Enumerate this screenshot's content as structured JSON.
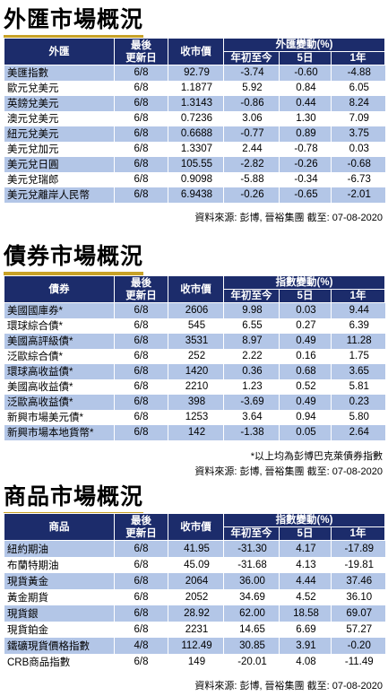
{
  "fx": {
    "title": "外匯市場概況",
    "headers": {
      "name": "外匯",
      "date_line1": "最後",
      "date_line2": "更新日",
      "close": "收市價",
      "change_group": "外匯變動(%)",
      "ytd": "年初至今",
      "d5": "5日",
      "y1": "1年"
    },
    "rows": [
      {
        "name": "美匯指數",
        "date": "6/8",
        "close": "92.79",
        "ytd": "-3.74",
        "d5": "-0.60",
        "y1": "-4.88"
      },
      {
        "name": "歐元兌美元",
        "date": "6/8",
        "close": "1.1877",
        "ytd": "5.92",
        "d5": "0.84",
        "y1": "6.05"
      },
      {
        "name": "英鎊兌美元",
        "date": "6/8",
        "close": "1.3143",
        "ytd": "-0.86",
        "d5": "0.44",
        "y1": "8.24"
      },
      {
        "name": "澳元兌美元",
        "date": "6/8",
        "close": "0.7236",
        "ytd": "3.06",
        "d5": "1.30",
        "y1": "7.09"
      },
      {
        "name": "紐元兌美元",
        "date": "6/8",
        "close": "0.6688",
        "ytd": "-0.77",
        "d5": "0.89",
        "y1": "3.75"
      },
      {
        "name": "美元兌加元",
        "date": "6/8",
        "close": "1.3307",
        "ytd": "2.44",
        "d5": "-0.78",
        "y1": "0.03"
      },
      {
        "name": "美元兌日圓",
        "date": "6/8",
        "close": "105.55",
        "ytd": "-2.82",
        "d5": "-0.26",
        "y1": "-0.68"
      },
      {
        "name": "美元兌瑞郎",
        "date": "6/8",
        "close": "0.9098",
        "ytd": "-5.88",
        "d5": "-0.34",
        "y1": "-6.73"
      },
      {
        "name": "美元兌離岸人民幣",
        "date": "6/8",
        "close": "6.9438",
        "ytd": "-0.26",
        "d5": "-0.65",
        "y1": "-2.01"
      }
    ],
    "source": "資料來源: 彭博, 晉裕集團 截至: 07-08-2020"
  },
  "bond": {
    "title": "債券市場概況",
    "headers": {
      "name": "債券",
      "date_line1": "最後",
      "date_line2": "更新日",
      "close": "收市價",
      "change_group": "指數變動(%)",
      "ytd": "年初至今",
      "d5": "5日",
      "y1": "1年"
    },
    "rows": [
      {
        "name": "美國國庫券*",
        "date": "6/8",
        "close": "2606",
        "ytd": "9.98",
        "d5": "0.03",
        "y1": "9.44"
      },
      {
        "name": "環球綜合債*",
        "date": "6/8",
        "close": "545",
        "ytd": "6.55",
        "d5": "0.27",
        "y1": "6.39"
      },
      {
        "name": "美國高評級債*",
        "date": "6/8",
        "close": "3531",
        "ytd": "8.97",
        "d5": "0.49",
        "y1": "11.28"
      },
      {
        "name": "泛歐綜合債*",
        "date": "6/8",
        "close": "252",
        "ytd": "2.22",
        "d5": "0.16",
        "y1": "1.75"
      },
      {
        "name": "環球高收益債*",
        "date": "6/8",
        "close": "1420",
        "ytd": "0.36",
        "d5": "0.68",
        "y1": "3.65"
      },
      {
        "name": "美國高收益債*",
        "date": "6/8",
        "close": "2210",
        "ytd": "1.23",
        "d5": "0.52",
        "y1": "5.81"
      },
      {
        "name": "泛歐高收益債*",
        "date": "6/8",
        "close": "398",
        "ytd": "-3.69",
        "d5": "0.49",
        "y1": "0.23"
      },
      {
        "name": "新興市場美元債*",
        "date": "6/8",
        "close": "1253",
        "ytd": "3.64",
        "d5": "0.94",
        "y1": "5.80"
      },
      {
        "name": "新興市場本地貨幣*",
        "date": "6/8",
        "close": "142",
        "ytd": "-1.38",
        "d5": "0.05",
        "y1": "2.64"
      }
    ],
    "note": "*以上均為彭博巴克萊債券指數",
    "source": "資料來源: 彭博, 晉裕集團 截至: 07-08-2020"
  },
  "commodity": {
    "title": "商品市場概況",
    "headers": {
      "name": "商品",
      "date_line1": "最後",
      "date_line2": "更新日",
      "close": "收市價",
      "change_group": "指數變動(%)",
      "ytd": "年初至今",
      "d5": "5日",
      "y1": "1年"
    },
    "rows": [
      {
        "name": "紐約期油",
        "date": "6/8",
        "close": "41.95",
        "ytd": "-31.30",
        "d5": "4.17",
        "y1": "-17.89"
      },
      {
        "name": "布蘭特期油",
        "date": "6/8",
        "close": "45.09",
        "ytd": "-31.68",
        "d5": "4.13",
        "y1": "-19.81"
      },
      {
        "name": "現貨黃金",
        "date": "6/8",
        "close": "2064",
        "ytd": "36.00",
        "d5": "4.44",
        "y1": "37.46"
      },
      {
        "name": "黃金期貨",
        "date": "6/8",
        "close": "2052",
        "ytd": "34.69",
        "d5": "4.52",
        "y1": "36.10"
      },
      {
        "name": "現貨銀",
        "date": "6/8",
        "close": "28.92",
        "ytd": "62.00",
        "d5": "18.58",
        "y1": "69.07"
      },
      {
        "name": "現貨鉑金",
        "date": "6/8",
        "close": "2231",
        "ytd": "14.65",
        "d5": "6.69",
        "y1": "57.27"
      },
      {
        "name": "鐵礦現貨價格指數",
        "date": "4/8",
        "close": "112.49",
        "ytd": "30.85",
        "d5": "3.91",
        "y1": "-0.20"
      },
      {
        "name": "CRB商品指數",
        "date": "6/8",
        "close": "149",
        "ytd": "-20.01",
        "d5": "4.08",
        "y1": "-11.49"
      }
    ],
    "source": "資料來源: 彭博, 晉裕集團 截至: 07-08-2020"
  },
  "colors": {
    "header_bg": "#1c2c6b",
    "row_shade": "#b3c6e7",
    "title_underline": "#c8a227"
  }
}
